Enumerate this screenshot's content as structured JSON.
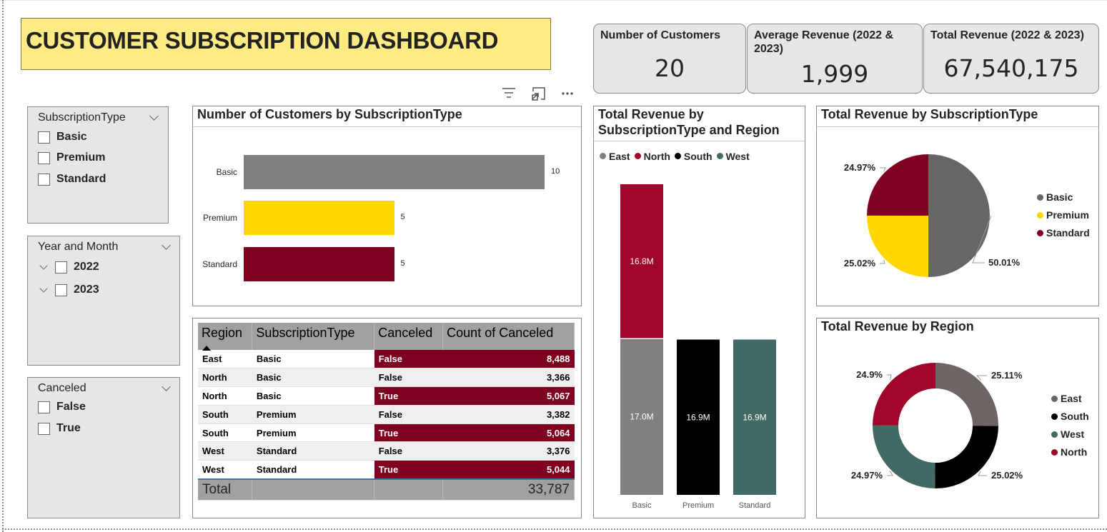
{
  "title": "CUSTOMER SUBSCRIPTION DASHBOARD",
  "kpis": [
    {
      "label": "Number of Customers",
      "value": "20"
    },
    {
      "label": "Average Revenue (2022 & 2023)",
      "value": "1,999"
    },
    {
      "label": "Total Revenue (2022 & 2023)",
      "value": "67,540,175"
    }
  ],
  "toolbar": {
    "filter_icon": "filter-icon",
    "focus_icon": "focus-mode-icon",
    "more_icon": "more-options-icon"
  },
  "slicers": {
    "subscription": {
      "title": "SubscriptionType",
      "options": [
        "Basic",
        "Premium",
        "Standard"
      ]
    },
    "year_month": {
      "title": "Year and Month",
      "options": [
        "2022",
        "2023"
      ]
    },
    "canceled": {
      "title": "Canceled",
      "options": [
        "False",
        "True"
      ]
    }
  },
  "colors": {
    "gray": "#808080",
    "gold": "#ffd700",
    "maroon": "#800020",
    "red": "#a0062a",
    "black": "#000000",
    "teal": "#426a64",
    "east": "#6c6563",
    "title_bg": "#ffeb84"
  },
  "customers_chart": {
    "title": "Number of Customers by SubscriptionType",
    "chart_data": {
      "type": "bar",
      "categories": [
        "Basic",
        "Premium",
        "Standard"
      ],
      "values": [
        10,
        5,
        5
      ],
      "colors": [
        "#808080",
        "#ffd700",
        "#800020"
      ],
      "max": 10
    }
  },
  "table": {
    "headers": [
      "Region",
      "SubscriptionType",
      "Canceled",
      "Count of Canceled"
    ],
    "rows": [
      [
        "East",
        "Basic",
        "False",
        "8,488"
      ],
      [
        "North",
        "Basic",
        "False",
        "3,366"
      ],
      [
        "North",
        "Basic",
        "True",
        "5,067"
      ],
      [
        "South",
        "Premium",
        "False",
        "3,382"
      ],
      [
        "South",
        "Premium",
        "True",
        "5,064"
      ],
      [
        "West",
        "Standard",
        "False",
        "3,376"
      ],
      [
        "West",
        "Standard",
        "True",
        "5,044"
      ]
    ],
    "highlight_rows": [
      0,
      2,
      4,
      6
    ],
    "total_label": "Total",
    "total_value": "33,787"
  },
  "stacked_chart": {
    "title": "Total Revenue by SubscriptionType and Region",
    "legend": [
      {
        "name": "East",
        "color": "#808080"
      },
      {
        "name": "North",
        "color": "#a0062a"
      },
      {
        "name": "South",
        "color": "#000000"
      },
      {
        "name": "West",
        "color": "#426a64"
      }
    ],
    "chart_data": {
      "type": "bar",
      "stacked": true,
      "categories": [
        "Basic",
        "Premium",
        "Standard"
      ],
      "series": [
        {
          "name": "East",
          "values": [
            17.0,
            0,
            0
          ],
          "color": "#808080"
        },
        {
          "name": "North",
          "values": [
            16.8,
            0,
            0
          ],
          "color": "#a0062a"
        },
        {
          "name": "South",
          "values": [
            0,
            16.9,
            0
          ],
          "color": "#000000"
        },
        {
          "name": "West",
          "values": [
            0,
            0,
            16.9
          ],
          "color": "#426a64"
        }
      ],
      "labels": {
        "East": [
          "17.0M"
        ],
        "North": [
          "16.8M"
        ],
        "South": [
          "16.9M"
        ],
        "West": [
          "16.9M"
        ]
      },
      "max": 33.8
    }
  },
  "pie_chart": {
    "title": "Total Revenue by SubscriptionType",
    "chart_data": {
      "type": "pie",
      "categories": [
        "Basic",
        "Premium",
        "Standard"
      ],
      "values": [
        50.01,
        25.02,
        24.97
      ],
      "labels": [
        "50.01%",
        "25.02%",
        "24.97%"
      ],
      "colors": [
        "#666666",
        "#ffd700",
        "#800020"
      ]
    }
  },
  "donut_chart": {
    "title": "Total Revenue by Region",
    "chart_data": {
      "type": "pie",
      "donut": true,
      "categories": [
        "East",
        "South",
        "West",
        "North"
      ],
      "values": [
        25.11,
        25.02,
        24.97,
        24.9
      ],
      "labels": [
        "25.11%",
        "25.02%",
        "24.97%",
        "24.9%"
      ],
      "colors": [
        "#6c6563",
        "#000000",
        "#426a64",
        "#a0062a"
      ]
    }
  }
}
